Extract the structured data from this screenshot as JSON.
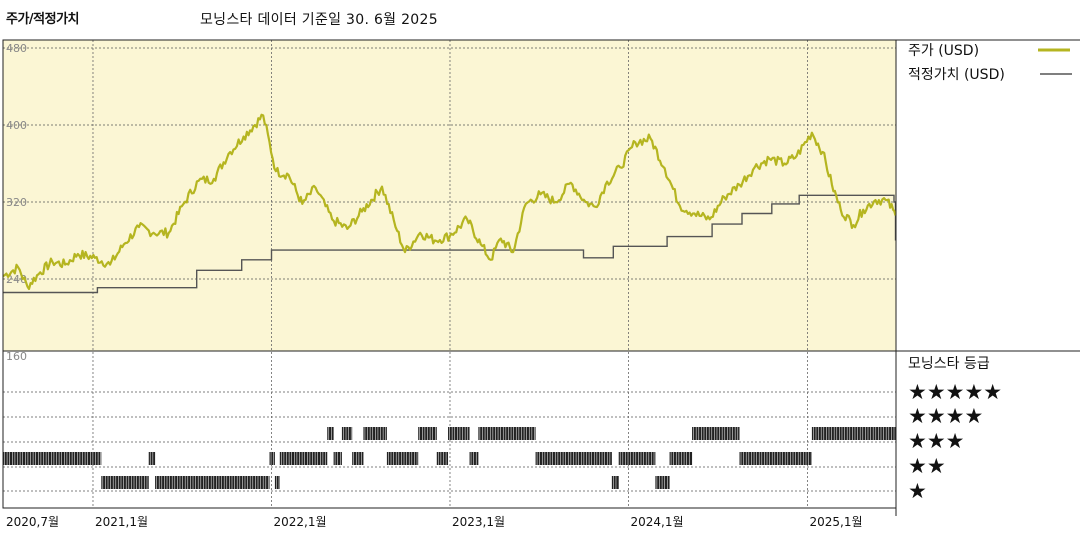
{
  "header": {
    "section_title": "주가/적정가치",
    "source_note": "모닝스타 데이터 기준일 30. 6월 2025"
  },
  "colors": {
    "price": "#b5b520",
    "fair_value": "#555555",
    "upper_bg": "#fbf6d4",
    "rating_bar": "#222222"
  },
  "chart_data": [
    {
      "type": "line",
      "y_ticks": [
        "160",
        "240",
        "320",
        "400",
        "480"
      ],
      "ylim": [
        160,
        480
      ],
      "x_range": [
        "2020-07-01",
        "2025-07-01"
      ],
      "x_tick_labels": [
        {
          "date": "2020-07-01",
          "label": "2020,7월"
        },
        {
          "date": "2021-01-01",
          "label": "2021,1월"
        },
        {
          "date": "2022-01-01",
          "label": "2022,1월"
        },
        {
          "date": "2023-01-01",
          "label": "2023,1월"
        },
        {
          "date": "2024-01-01",
          "label": "2024,1월"
        },
        {
          "date": "2025-01-01",
          "label": "2025,1월"
        }
      ],
      "legend": {
        "placement": "right",
        "price_label": "주가 (USD)",
        "fair_value_label": "적정가치 (USD)"
      },
      "series": [
        {
          "name": "주가 (USD)",
          "points": [
            [
              "2020-07-01",
              243
            ],
            [
              "2020-08-01",
              252
            ],
            [
              "2020-08-20",
              232
            ],
            [
              "2020-09-15",
              247
            ],
            [
              "2020-10-10",
              258
            ],
            [
              "2020-11-05",
              255
            ],
            [
              "2020-12-01",
              266
            ],
            [
              "2021-01-05",
              262
            ],
            [
              "2021-02-05",
              255
            ],
            [
              "2021-03-05",
              276
            ],
            [
              "2021-04-05",
              294
            ],
            [
              "2021-05-05",
              288
            ],
            [
              "2021-06-05",
              288
            ],
            [
              "2021-07-05",
              318
            ],
            [
              "2021-08-05",
              342
            ],
            [
              "2021-09-05",
              344
            ],
            [
              "2021-10-05",
              370
            ],
            [
              "2021-11-05",
              388
            ],
            [
              "2021-12-15",
              410
            ],
            [
              "2022-01-10",
              352
            ],
            [
              "2022-02-05",
              348
            ],
            [
              "2022-03-05",
              318
            ],
            [
              "2022-04-01",
              335
            ],
            [
              "2022-05-05",
              302
            ],
            [
              "2022-06-05",
              292
            ],
            [
              "2022-07-05",
              310
            ],
            [
              "2022-08-15",
              336
            ],
            [
              "2022-09-15",
              290
            ],
            [
              "2022-10-01",
              268
            ],
            [
              "2022-11-01",
              288
            ],
            [
              "2022-12-01",
              280
            ],
            [
              "2023-01-01",
              285
            ],
            [
              "2023-02-05",
              302
            ],
            [
              "2023-03-05",
              276
            ],
            [
              "2023-03-25",
              260
            ],
            [
              "2023-04-15",
              282
            ],
            [
              "2023-05-10",
              268
            ],
            [
              "2023-06-05",
              318
            ],
            [
              "2023-07-05",
              328
            ],
            [
              "2023-08-05",
              320
            ],
            [
              "2023-09-05",
              340
            ],
            [
              "2023-10-05",
              320
            ],
            [
              "2023-10-25",
              315
            ],
            [
              "2023-11-15",
              338
            ],
            [
              "2023-12-15",
              356
            ],
            [
              "2024-01-15",
              382
            ],
            [
              "2024-02-15",
              386
            ],
            [
              "2024-03-15",
              355
            ],
            [
              "2024-04-15",
              316
            ],
            [
              "2024-05-15",
              308
            ],
            [
              "2024-06-15",
              302
            ],
            [
              "2024-07-15",
              325
            ],
            [
              "2024-08-15",
              338
            ],
            [
              "2024-09-15",
              356
            ],
            [
              "2024-10-15",
              365
            ],
            [
              "2024-11-15",
              360
            ],
            [
              "2024-12-10",
              368
            ],
            [
              "2025-01-10",
              392
            ],
            [
              "2025-02-01",
              372
            ],
            [
              "2025-02-20",
              338
            ],
            [
              "2025-03-10",
              312
            ],
            [
              "2025-04-05",
              296
            ],
            [
              "2025-04-25",
              312
            ],
            [
              "2025-05-20",
              322
            ],
            [
              "2025-06-10",
              322
            ],
            [
              "2025-06-25",
              312
            ],
            [
              "2025-06-30",
              306
            ]
          ]
        },
        {
          "name": "적정가치 (USD)",
          "steps": [
            [
              "2020-07-01",
              226
            ],
            [
              "2021-01-10",
              231
            ],
            [
              "2021-08-01",
              249
            ],
            [
              "2021-11-01",
              260
            ],
            [
              "2022-01-01",
              270
            ],
            [
              "2023-10-01",
              262
            ],
            [
              "2023-12-01",
              274
            ],
            [
              "2024-03-20",
              284
            ],
            [
              "2024-06-20",
              297
            ],
            [
              "2024-08-20",
              308
            ],
            [
              "2024-10-20",
              318
            ],
            [
              "2024-12-15",
              327
            ],
            [
              "2025-06-27",
              320
            ],
            [
              "2025-06-30",
              280
            ]
          ]
        }
      ]
    },
    {
      "type": "bar",
      "title": "모닝스타 등급",
      "levels": [
        "★★★★★",
        "★★★★",
        "★★★",
        "★★",
        "★"
      ],
      "ratings": [
        [
          "2020-07-01",
          "2021-01-18",
          2
        ],
        [
          "2021-01-18",
          "2021-04-25",
          1
        ],
        [
          "2021-04-25",
          "2021-05-08",
          2
        ],
        [
          "2021-05-08",
          "2021-12-28",
          1
        ],
        [
          "2021-12-28",
          "2022-01-08",
          2
        ],
        [
          "2022-01-08",
          "2022-01-18",
          1
        ],
        [
          "2022-01-18",
          "2022-04-25",
          2
        ],
        [
          "2022-04-25",
          "2022-05-08",
          3
        ],
        [
          "2022-05-08",
          "2022-05-25",
          2
        ],
        [
          "2022-05-25",
          "2022-06-15",
          3
        ],
        [
          "2022-06-15",
          "2022-07-08",
          2
        ],
        [
          "2022-07-08",
          "2022-08-25",
          3
        ],
        [
          "2022-08-25",
          "2022-10-28",
          2
        ],
        [
          "2022-10-28",
          "2022-12-05",
          3
        ],
        [
          "2022-12-05",
          "2022-12-28",
          2
        ],
        [
          "2022-12-28",
          "2023-02-10",
          3
        ],
        [
          "2023-02-10",
          "2023-02-28",
          2
        ],
        [
          "2023-02-28",
          "2023-06-25",
          3
        ],
        [
          "2023-06-25",
          "2023-11-28",
          2
        ],
        [
          "2023-11-28",
          "2023-12-12",
          1
        ],
        [
          "2023-12-12",
          "2024-02-25",
          2
        ],
        [
          "2024-02-25",
          "2024-03-25",
          1
        ],
        [
          "2024-03-25",
          "2024-05-10",
          2
        ],
        [
          "2024-05-10",
          "2024-08-15",
          3
        ],
        [
          "2024-08-15",
          "2025-01-10",
          2
        ],
        [
          "2025-01-10",
          "2025-06-30",
          3
        ]
      ]
    }
  ]
}
